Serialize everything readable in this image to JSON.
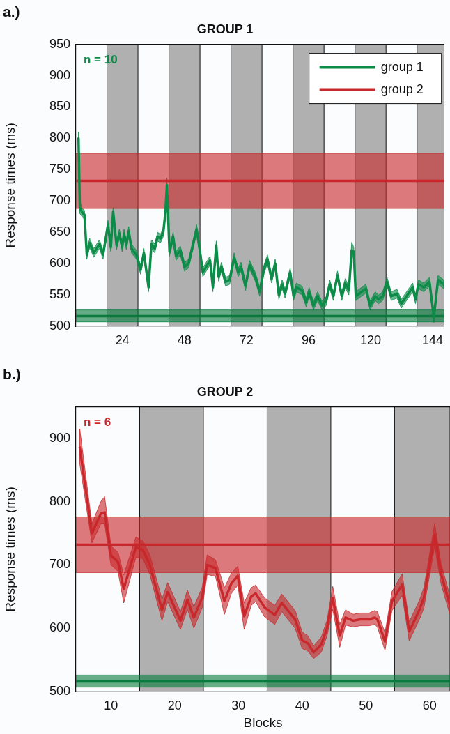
{
  "chart_data": [
    {
      "type": "line",
      "title": "GROUP 1",
      "ylabel": "Response times (ms)",
      "annotations": [
        "a.)",
        "n = 10"
      ],
      "xlim": [
        6,
        148.5
      ],
      "xticks": [
        24,
        48,
        72,
        96,
        120,
        144
      ],
      "ylim": [
        500,
        950
      ],
      "yticks": [
        500,
        550,
        600,
        650,
        700,
        750,
        800,
        850,
        900,
        950
      ],
      "legend": "top right",
      "marker": "none",
      "line_style": "solid",
      "bands": [
        {
          "axis": "x",
          "from": 18,
          "to": 30,
          "color": "#b0b0b0"
        },
        {
          "axis": "x",
          "from": 42,
          "to": 54,
          "color": "#b0b0b0"
        },
        {
          "axis": "x",
          "from": 66,
          "to": 78,
          "color": "#b0b0b0"
        },
        {
          "axis": "x",
          "from": 90,
          "to": 102,
          "color": "#b0b0b0"
        },
        {
          "axis": "x",
          "from": 114,
          "to": 126,
          "color": "#b0b0b0"
        },
        {
          "axis": "x",
          "from": 138,
          "to": 148.5,
          "color": "#b0b0b0"
        }
      ],
      "series": [
        {
          "name": "group 1",
          "color": "#0c8c48",
          "x": [
            7,
            7.5,
            8.5,
            9.3,
            10.2,
            11.3,
            12.9,
            15.1,
            16.5,
            18.4,
            19.5,
            20.4,
            21.7,
            22.8,
            23.9,
            24.6,
            25.5,
            26.4,
            27.5,
            29.4,
            31,
            32.3,
            34.1,
            35.2,
            36.5,
            37.6,
            38.7,
            39.8,
            40.6,
            41.2,
            42.2,
            43.6,
            44.7,
            46.4,
            48,
            49.6,
            52.7,
            54,
            55.1,
            57.9,
            59,
            60.3,
            61.2,
            62.3,
            63.9,
            65.5,
            67.2,
            68.8,
            69.9,
            71.6,
            73.2,
            75.4,
            77.1,
            78.7,
            80.1,
            81.7,
            83.1,
            84.5,
            85.8,
            86.9,
            88.9,
            90.2,
            91.3,
            93.5,
            95.1,
            96.2,
            97.9,
            99.5,
            101.2,
            102.8,
            104.2,
            105.6,
            107.2,
            108.9,
            110.2,
            111.6,
            112.7,
            113.5,
            114.3,
            116.5,
            118.2,
            119.8,
            121.8,
            123.1,
            124.7,
            126.4,
            128,
            130.2,
            131.9,
            136.3,
            137.4,
            138.5,
            140.6,
            142.8,
            144.5,
            146.1,
            148.3
          ],
          "values": [
            800,
            690,
            681,
            678,
            614,
            633,
            617,
            631,
            614,
            662,
            626,
            683,
            629,
            648,
            626,
            648,
            629,
            652,
            624,
            614,
            590,
            617,
            562,
            631,
            624,
            643,
            640,
            650,
            681,
            725,
            619,
            643,
            612,
            621,
            595,
            600,
            655,
            619,
            586,
            605,
            562,
            629,
            579,
            595,
            571,
            574,
            610,
            586,
            595,
            564,
            598,
            579,
            555,
            590,
            607,
            576,
            600,
            550,
            567,
            552,
            586,
            548,
            562,
            557,
            538,
            555,
            533,
            548,
            533,
            540,
            567,
            548,
            581,
            548,
            569,
            557,
            621,
            619,
            548,
            555,
            560,
            533,
            548,
            543,
            548,
            571,
            548,
            552,
            536,
            562,
            543,
            567,
            562,
            571,
            514,
            574,
            567
          ],
          "lower": [
            790,
            680,
            674,
            671,
            607,
            626,
            610,
            624,
            607,
            655,
            619,
            676,
            622,
            641,
            619,
            641,
            622,
            645,
            617,
            607,
            583,
            610,
            555,
            624,
            617,
            636,
            633,
            643,
            674,
            710,
            612,
            636,
            605,
            614,
            588,
            593,
            648,
            612,
            579,
            598,
            555,
            622,
            572,
            588,
            564,
            567,
            603,
            579,
            588,
            557,
            591,
            572,
            548,
            583,
            600,
            569,
            593,
            543,
            560,
            545,
            579,
            541,
            555,
            550,
            531,
            548,
            526,
            541,
            526,
            533,
            560,
            541,
            574,
            541,
            562,
            550,
            608,
            612,
            541,
            548,
            553,
            526,
            541,
            536,
            541,
            564,
            541,
            545,
            529,
            555,
            536,
            560,
            555,
            564,
            506,
            567,
            560
          ],
          "upper": [
            810,
            700,
            688,
            685,
            621,
            640,
            624,
            638,
            621,
            669,
            633,
            690,
            636,
            655,
            633,
            655,
            636,
            659,
            631,
            621,
            597,
            624,
            569,
            638,
            631,
            650,
            647,
            657,
            688,
            737,
            626,
            650,
            619,
            628,
            602,
            607,
            662,
            626,
            593,
            612,
            569,
            636,
            586,
            602,
            578,
            581,
            617,
            593,
            602,
            571,
            605,
            586,
            562,
            597,
            614,
            583,
            607,
            557,
            574,
            559,
            593,
            555,
            569,
            564,
            545,
            562,
            540,
            555,
            540,
            547,
            574,
            555,
            588,
            555,
            576,
            564,
            634,
            626,
            555,
            562,
            567,
            540,
            555,
            550,
            555,
            578,
            555,
            559,
            543,
            569,
            550,
            574,
            569,
            578,
            522,
            581,
            574
          ]
        },
        {
          "color": "#0a7a3e",
          "x": [
            6,
            148.5
          ],
          "values": [
            516,
            516
          ],
          "lower": [
            507,
            507
          ],
          "upper": [
            526,
            526
          ]
        },
        {
          "name": "group 2",
          "color": "#c8282c",
          "x": [
            6,
            148.5
          ],
          "values": [
            732,
            732
          ],
          "lower": [
            688,
            688
          ],
          "upper": [
            776,
            776
          ]
        }
      ]
    },
    {
      "type": "line",
      "title": "GROUP 2",
      "xlabel": "Blocks",
      "ylabel": "Response times (ms)",
      "annotations": [
        "b.)",
        "n = 6"
      ],
      "xlim": [
        4.5,
        63.2
      ],
      "xticks": [
        10,
        20,
        30,
        40,
        50,
        60
      ],
      "ylim": [
        500,
        950
      ],
      "yticks": [
        500,
        600,
        700,
        800,
        900
      ],
      "marker": "none",
      "line_style": "solid",
      "bands": [
        {
          "axis": "x",
          "from": 14.5,
          "to": 24.5,
          "color": "#b0b0b0"
        },
        {
          "axis": "x",
          "from": 34.5,
          "to": 44.5,
          "color": "#b0b0b0"
        },
        {
          "axis": "x",
          "from": 54.5,
          "to": 63.2,
          "color": "#b0b0b0"
        }
      ],
      "series": [
        {
          "color": "#c8282c",
          "x": [
            5.1,
            7,
            8.4,
            9,
            10,
            11.1,
            12,
            13.9,
            15,
            16.1,
            18,
            18.9,
            20.9,
            22,
            23,
            24.3,
            25.1,
            26.4,
            27.8,
            28.9,
            29.9,
            30.9,
            32,
            32.7,
            34.1,
            35.7,
            36.8,
            38.9,
            40,
            40.9,
            41.8,
            43,
            43.9,
            44.8,
            45.9,
            46.8,
            48,
            49.1,
            50.5,
            51.4,
            51.8,
            53,
            54.1,
            55.7,
            56.8,
            58.4,
            59.1,
            60.8,
            61.8,
            63,
            63.2
          ],
          "values": [
            886,
            750,
            781,
            783,
            715,
            705,
            662,
            728,
            724,
            700,
            629,
            657,
            612,
            645,
            617,
            648,
            700,
            695,
            643,
            671,
            683,
            619,
            650,
            655,
            633,
            621,
            640,
            614,
            581,
            576,
            562,
            574,
            600,
            648,
            588,
            617,
            612,
            614,
            614,
            617,
            614,
            579,
            643,
            669,
            595,
            629,
            648,
            748,
            686,
            643,
            636
          ],
          "lower": [
            860,
            735,
            765,
            765,
            700,
            690,
            640,
            712,
            710,
            685,
            612,
            642,
            598,
            630,
            600,
            632,
            685,
            682,
            622,
            655,
            668,
            598,
            636,
            642,
            618,
            606,
            626,
            600,
            568,
            564,
            552,
            562,
            588,
            630,
            570,
            605,
            602,
            604,
            604,
            606,
            602,
            565,
            628,
            652,
            580,
            614,
            632,
            730,
            670,
            628,
            622
          ],
          "upper": [
            915,
            765,
            800,
            808,
            730,
            720,
            684,
            744,
            738,
            716,
            646,
            672,
            626,
            660,
            634,
            664,
            716,
            708,
            664,
            687,
            698,
            640,
            664,
            668,
            648,
            636,
            654,
            628,
            594,
            588,
            572,
            586,
            612,
            666,
            606,
            629,
            622,
            624,
            624,
            628,
            626,
            593,
            658,
            686,
            610,
            644,
            664,
            765,
            702,
            658,
            650
          ]
        },
        {
          "color": "#c8282c",
          "x": [
            4.5,
            63.2
          ],
          "values": [
            732,
            732
          ],
          "lower": [
            688,
            688
          ],
          "upper": [
            776,
            776
          ]
        },
        {
          "color": "#0a7a3e",
          "x": [
            4.5,
            63.2
          ],
          "values": [
            516,
            516
          ],
          "lower": [
            507,
            507
          ],
          "upper": [
            526,
            526
          ]
        }
      ]
    }
  ]
}
